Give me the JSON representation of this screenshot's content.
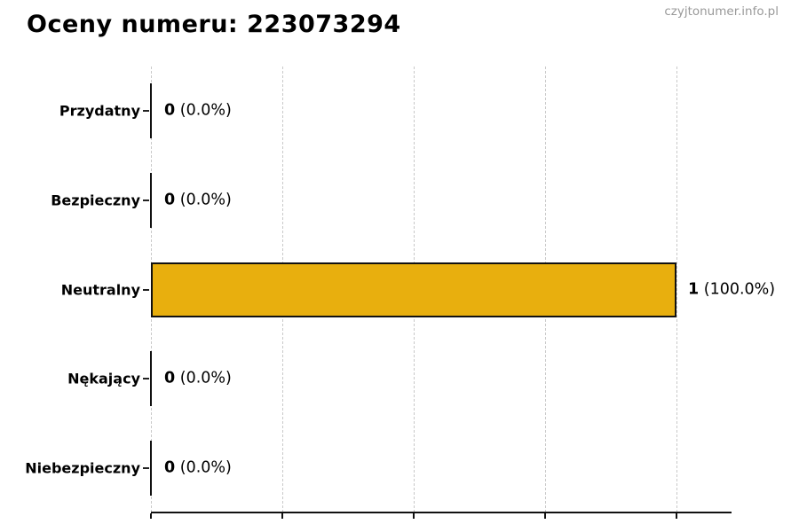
{
  "header": {
    "title": "Oceny numeru: 223073294",
    "watermark": "czyjtonumer.info.pl"
  },
  "chart_data": {
    "type": "bar",
    "orientation": "horizontal",
    "title": "Oceny numeru: 223073294",
    "categories": [
      "Przydatny",
      "Bezpieczny",
      "Neutralny",
      "Nękający",
      "Niebezpieczny"
    ],
    "values": [
      0,
      0,
      1,
      0,
      0
    ],
    "counts": [
      "0",
      "0",
      "1",
      "0",
      "0"
    ],
    "percent_labels": [
      "(0.0%)",
      "(0.0%)",
      "(100.0%)",
      "(0.0%)",
      "(0.0%)"
    ],
    "xlabel": "",
    "ylabel": "",
    "xlim": [
      0,
      1.1
    ],
    "grid": true,
    "gridline_values": [
      0,
      0.25,
      0.5,
      0.75,
      1.0
    ],
    "x_tick_labels": [],
    "bar_color": "#E8AF0E",
    "bar_edge_color": "#111111",
    "gridline_color": "#c9c9c9",
    "axis_color": "#111111",
    "watermark_color": "#999999"
  }
}
